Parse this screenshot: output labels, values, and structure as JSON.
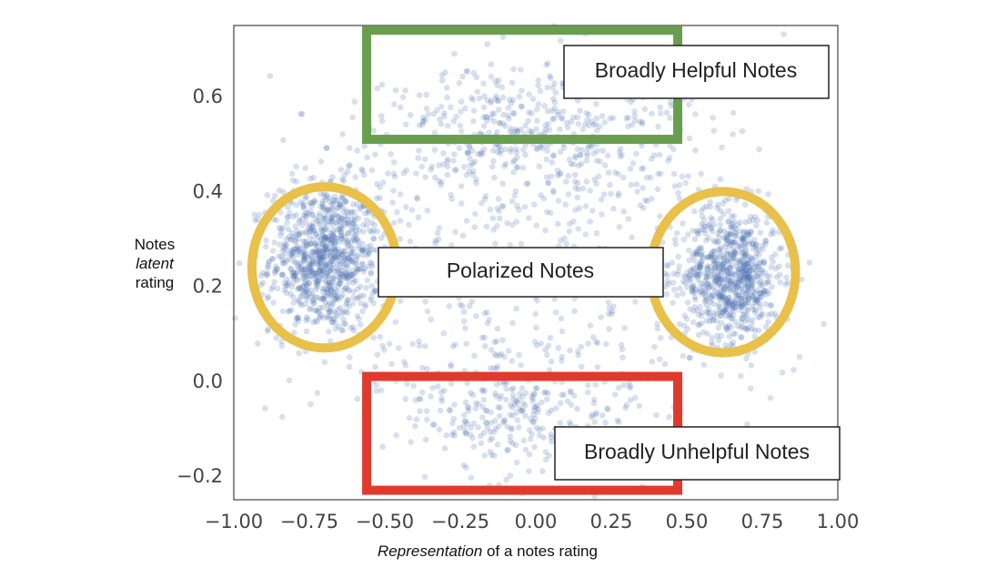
{
  "chart_data": {
    "type": "scatter",
    "title": "",
    "xlabel": {
      "italic_part": "Representation",
      "rest": " of a notes rating"
    },
    "ylabel": {
      "line1": "Notes",
      "line2_italic": "latent",
      "line3": "rating"
    },
    "xlim": [
      -1.0,
      1.0
    ],
    "ylim": [
      -0.25,
      0.75
    ],
    "xticks": [
      -1.0,
      -0.75,
      -0.5,
      -0.25,
      0.0,
      0.25,
      0.5,
      0.75,
      1.0
    ],
    "xtick_labels": [
      "−1.00",
      "−0.75",
      "−0.50",
      "−0.25",
      "0.00",
      "0.25",
      "0.50",
      "0.75",
      "1.00"
    ],
    "yticks": [
      -0.2,
      0.0,
      0.2,
      0.4,
      0.6
    ],
    "ytick_labels": [
      "−0.2",
      "0.0",
      "0.2",
      "0.4",
      "0.6"
    ],
    "grid": false,
    "point_color": "#4c72b0",
    "point_alpha": 0.22,
    "clusters": [
      {
        "name": "left polarized cluster",
        "cx": -0.7,
        "cy": 0.26,
        "sx": 0.09,
        "sy": 0.08,
        "count": 900
      },
      {
        "name": "right polarized cluster",
        "cx": 0.65,
        "cy": 0.22,
        "sx": 0.08,
        "sy": 0.07,
        "count": 750
      },
      {
        "name": "upper arc",
        "cx": 0.0,
        "cy": 0.48,
        "sx": 0.3,
        "sy": 0.08,
        "count": 450
      },
      {
        "name": "lower arc",
        "cx": -0.05,
        "cy": -0.03,
        "sx": 0.22,
        "sy": 0.07,
        "count": 320
      },
      {
        "name": "diffuse middle",
        "cx": 0.0,
        "cy": 0.25,
        "sx": 0.45,
        "sy": 0.17,
        "count": 500
      }
    ],
    "annotations": [
      {
        "kind": "rect",
        "label": "Broadly Helpful Notes",
        "color": "#6a9e4f",
        "x0": -0.56,
        "x1": 0.47,
        "y0": 0.51,
        "y1": 0.74
      },
      {
        "kind": "rect",
        "label": "Broadly Unhelpful Notes",
        "color": "#e03a2e",
        "x0": -0.56,
        "x1": 0.47,
        "y0": -0.23,
        "y1": 0.01
      },
      {
        "kind": "circle",
        "label": "Polarized Notes",
        "color": "#e8c04a",
        "cx": -0.7,
        "cy": 0.24,
        "rx": 0.24,
        "ry": 0.17
      },
      {
        "kind": "circle",
        "label": "",
        "color": "#e8c04a",
        "cx": 0.62,
        "cy": 0.23,
        "rx": 0.24,
        "ry": 0.17
      }
    ]
  }
}
